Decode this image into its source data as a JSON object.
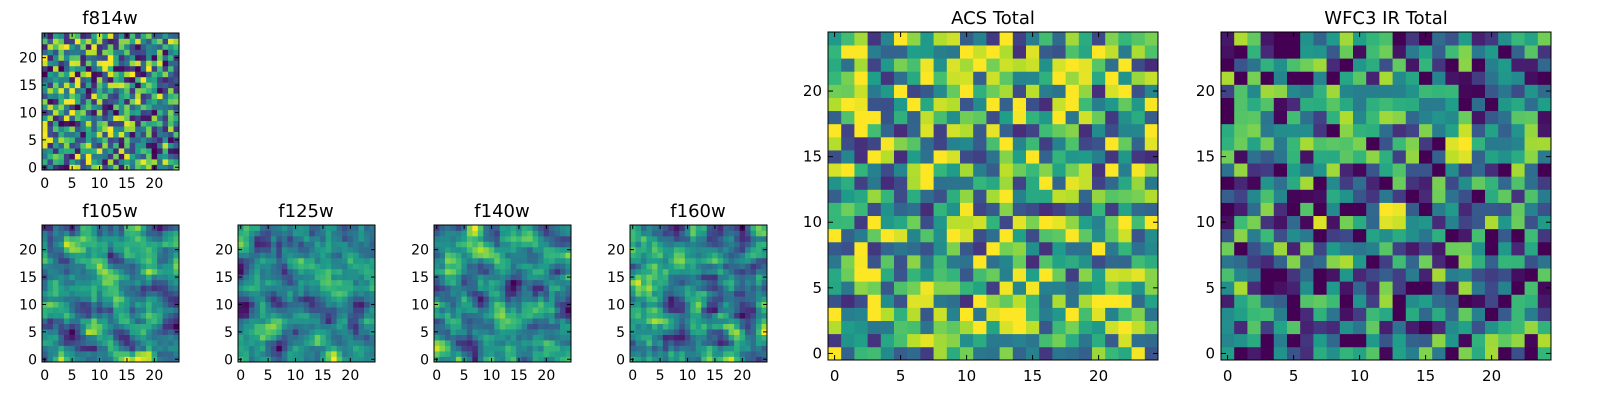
{
  "colormap": "viridis",
  "colormap_stops": [
    "#440154",
    "#482878",
    "#3e4989",
    "#31688e",
    "#26828e",
    "#1f9e89",
    "#35b779",
    "#6ece58",
    "#b5de2b",
    "#fde725"
  ],
  "chart_data": [
    {
      "id": "f814w",
      "type": "heatmap",
      "title": "f814w",
      "size": 25,
      "xticks": [
        0,
        5,
        10,
        15,
        20
      ],
      "yticks": [
        0,
        5,
        10,
        15,
        20
      ],
      "xlim": [
        -0.5,
        24.5
      ],
      "ylim": [
        -0.5,
        24.5
      ],
      "value_range": [
        0,
        1
      ],
      "seed": 814,
      "smooth": 0,
      "blobs": []
    },
    {
      "id": "f105w",
      "type": "heatmap",
      "title": "f105w",
      "size": 25,
      "xticks": [
        0,
        5,
        10,
        15,
        20
      ],
      "yticks": [
        0,
        5,
        10,
        15,
        20
      ],
      "xlim": [
        -0.5,
        24.5
      ],
      "ylim": [
        -0.5,
        24.5
      ],
      "value_range": [
        0,
        1
      ],
      "seed": 105,
      "smooth": 1,
      "blobs": []
    },
    {
      "id": "f125w",
      "type": "heatmap",
      "title": "f125w",
      "size": 25,
      "xticks": [
        0,
        5,
        10,
        15,
        20
      ],
      "yticks": [
        0,
        5,
        10,
        15,
        20
      ],
      "xlim": [
        -0.5,
        24.5
      ],
      "ylim": [
        -0.5,
        24.5
      ],
      "value_range": [
        0,
        1
      ],
      "seed": 125,
      "smooth": 1,
      "blobs": []
    },
    {
      "id": "f140w",
      "type": "heatmap",
      "title": "f140w",
      "size": 25,
      "xticks": [
        0,
        5,
        10,
        15,
        20
      ],
      "yticks": [
        0,
        5,
        10,
        15,
        20
      ],
      "xlim": [
        -0.5,
        24.5
      ],
      "ylim": [
        -0.5,
        24.5
      ],
      "value_range": [
        0,
        1
      ],
      "seed": 140,
      "smooth": 1,
      "blobs": []
    },
    {
      "id": "f160w",
      "type": "heatmap",
      "title": "f160w",
      "size": 25,
      "xticks": [
        0,
        5,
        10,
        15,
        20
      ],
      "yticks": [
        0,
        5,
        10,
        15,
        20
      ],
      "xlim": [
        -0.5,
        24.5
      ],
      "ylim": [
        -0.5,
        24.5
      ],
      "value_range": [
        0,
        1
      ],
      "seed": 160,
      "smooth": 1,
      "blobs": []
    },
    {
      "id": "acs-total",
      "type": "heatmap",
      "title": "ACS Total",
      "size": 25,
      "xticks": [
        0,
        5,
        10,
        15,
        20
      ],
      "yticks": [
        0,
        5,
        10,
        15,
        20
      ],
      "xlim": [
        -0.5,
        24.5
      ],
      "ylim": [
        -0.5,
        24.5
      ],
      "value_range": [
        0,
        1
      ],
      "seed": 900,
      "smooth": 0,
      "bias": 0.12,
      "blobs": []
    },
    {
      "id": "wfc3-ir-total",
      "type": "heatmap",
      "title": "WFC3 IR Total",
      "size": 25,
      "xticks": [
        0,
        5,
        10,
        15,
        20
      ],
      "yticks": [
        0,
        5,
        10,
        15,
        20
      ],
      "xlim": [
        -0.5,
        24.5
      ],
      "ylim": [
        -0.5,
        24.5
      ],
      "value_range": [
        0,
        1
      ],
      "seed": 777,
      "smooth": 0,
      "bias": -0.12,
      "blobs": [
        {
          "x": 18,
          "y": 16,
          "value": 1.0
        },
        {
          "x": 17,
          "y": 16,
          "value": 0.95
        },
        {
          "x": 18,
          "y": 15,
          "value": 0.95
        },
        {
          "x": 17,
          "y": 15,
          "value": 0.9
        },
        {
          "x": 18,
          "y": 17,
          "value": 0.92
        },
        {
          "x": 12,
          "y": 11,
          "value": 1.0
        },
        {
          "x": 13,
          "y": 11,
          "value": 0.97
        },
        {
          "x": 12,
          "y": 10,
          "value": 0.95
        },
        {
          "x": 13,
          "y": 10,
          "value": 0.92
        },
        {
          "x": 7,
          "y": 10,
          "value": 0.95
        },
        {
          "x": 6,
          "y": 10,
          "value": 0.02
        },
        {
          "x": 8,
          "y": 10,
          "value": 0.05
        },
        {
          "x": 6,
          "y": 12,
          "value": 0.02
        },
        {
          "x": 7,
          "y": 12,
          "value": 0.04
        }
      ]
    }
  ]
}
